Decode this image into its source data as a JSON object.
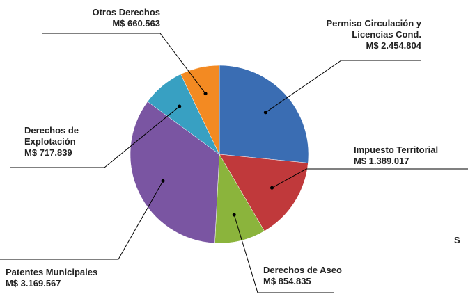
{
  "chart_data": {
    "type": "pie",
    "categories": [
      "Permiso Circulación y Licencias Cond.",
      "Impuesto Territorial",
      "Derechos de Aseo",
      "Patentes Municipales",
      "Derechos de Explotación",
      "Otros Derechos"
    ],
    "values": [
      2454804,
      1389017,
      854835,
      3169567,
      717839,
      660563
    ],
    "value_labels": [
      "M$ 2.454.804",
      "M$ 1.389.017",
      "M$ 854.835",
      "M$ 3.169.567",
      "M$ 717.839",
      "M$ 660.563"
    ],
    "colors": [
      "#3a6db3",
      "#c0393b",
      "#8bb43c",
      "#7a55a2",
      "#38a0c2",
      "#f38a22"
    ],
    "annotations": [
      "S"
    ]
  }
}
